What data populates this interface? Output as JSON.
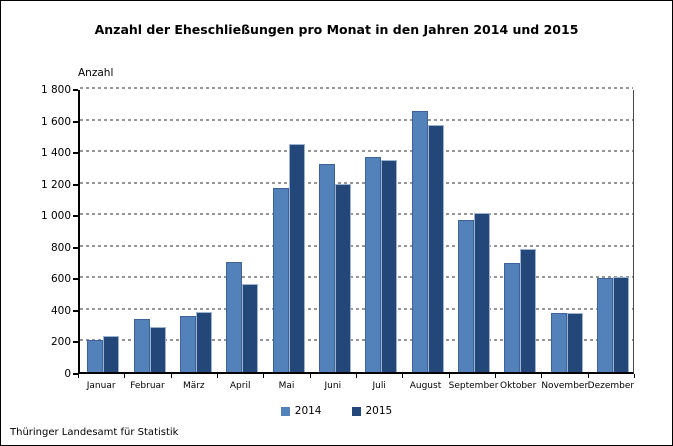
{
  "window": {
    "title": "Anzahl der Eheschließungen pro Monat in den Jahren 2014 und 2015"
  },
  "footer": {
    "source_label": "Thüringer Landesamt für Statistik"
  },
  "legend": {
    "items": [
      {
        "label": "2014",
        "color": "#5381BA"
      },
      {
        "label": "2015",
        "color": "#24477A"
      }
    ]
  },
  "chart_data": {
    "type": "bar",
    "title": "Anzahl der Eheschließungen pro Monat in den Jahren 2014 und 2015",
    "xlabel": "",
    "ylabel": "Anzahl",
    "ylim": [
      0,
      1800
    ],
    "grid": "horizontal-dashed",
    "legend_position": "bottom-center",
    "ytick_values": [
      0,
      200,
      400,
      600,
      800,
      1000,
      1200,
      1400,
      1600,
      1800
    ],
    "ytick_labels": [
      "0",
      "200",
      "400",
      "600",
      "800",
      "1 000",
      "1 200",
      "1 400",
      "1 600",
      "1 800"
    ],
    "categories": [
      "Januar",
      "Februar",
      "März",
      "April",
      "Mai",
      "Juni",
      "Juli",
      "August",
      "September",
      "Oktober",
      "November",
      "Dezember"
    ],
    "series": [
      {
        "name": "2014",
        "color": "#5381BA",
        "values": [
          205,
          335,
          355,
          695,
          1165,
          1320,
          1365,
          1655,
          965,
          690,
          375,
          595
        ]
      },
      {
        "name": "2015",
        "color": "#24477A",
        "values": [
          230,
          285,
          380,
          555,
          1445,
          1190,
          1345,
          1565,
          1010,
          780,
          375,
          605
        ]
      }
    ]
  }
}
